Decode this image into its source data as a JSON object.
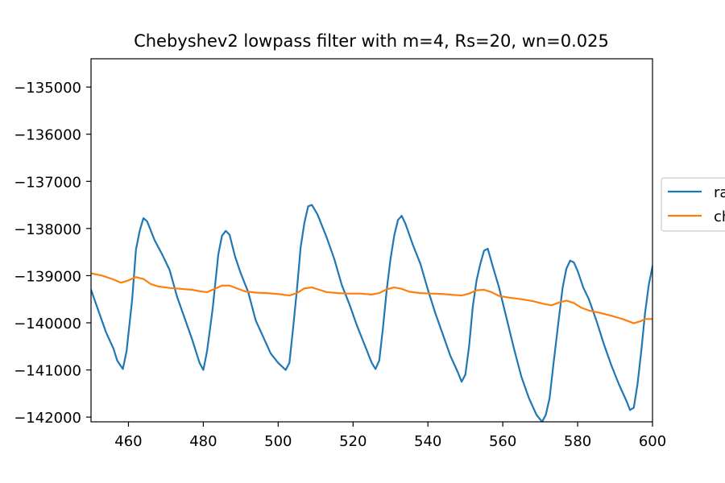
{
  "chart_data": {
    "type": "line",
    "title": "Chebyshev2 lowpass filter with m=4, Rs=20, wn=0.025",
    "xlabel": "",
    "ylabel": "",
    "xlim": [
      450,
      600
    ],
    "ylim": [
      -142100,
      -134400
    ],
    "x_ticks": [
      460,
      480,
      500,
      520,
      540,
      560,
      580,
      600
    ],
    "y_ticks": [
      -135000,
      -136000,
      -137000,
      -138000,
      -139000,
      -140000,
      -141000,
      -142000
    ],
    "x_tick_labels": [
      "460",
      "480",
      "500",
      "520",
      "540",
      "560",
      "580",
      "600"
    ],
    "y_tick_labels": [
      "−135000",
      "−136000",
      "−137000",
      "−138000",
      "−139000",
      "−140000",
      "−141000",
      "−142000"
    ],
    "grid": false,
    "legend_position": "right (partially cut off)",
    "legend_labels": [
      "ra",
      "ch"
    ],
    "series": [
      {
        "name": "ra",
        "color": "#1f77b4",
        "points": [
          [
            450,
            -139300
          ],
          [
            452,
            -139750
          ],
          [
            454,
            -140200
          ],
          [
            456,
            -140550
          ],
          [
            457,
            -140800
          ],
          [
            458.5,
            -140980
          ],
          [
            459.5,
            -140600
          ],
          [
            461,
            -139500
          ],
          [
            462,
            -138450
          ],
          [
            463,
            -138050
          ],
          [
            464,
            -137780
          ],
          [
            465,
            -137850
          ],
          [
            467,
            -138250
          ],
          [
            469,
            -138550
          ],
          [
            471,
            -138880
          ],
          [
            473,
            -139450
          ],
          [
            475,
            -139900
          ],
          [
            477,
            -140350
          ],
          [
            479,
            -140850
          ],
          [
            480,
            -141000
          ],
          [
            481,
            -140600
          ],
          [
            482.5,
            -139700
          ],
          [
            484,
            -138550
          ],
          [
            485,
            -138150
          ],
          [
            486,
            -138050
          ],
          [
            487,
            -138130
          ],
          [
            488.5,
            -138600
          ],
          [
            490,
            -138950
          ],
          [
            492,
            -139350
          ],
          [
            494,
            -139950
          ],
          [
            496,
            -140300
          ],
          [
            498,
            -140650
          ],
          [
            500,
            -140850
          ],
          [
            502,
            -141000
          ],
          [
            503,
            -140850
          ],
          [
            504,
            -140100
          ],
          [
            505,
            -139300
          ],
          [
            506,
            -138400
          ],
          [
            507,
            -137880
          ],
          [
            508,
            -137530
          ],
          [
            509,
            -137500
          ],
          [
            510.5,
            -137700
          ],
          [
            513,
            -138200
          ],
          [
            515,
            -138650
          ],
          [
            517,
            -139200
          ],
          [
            519,
            -139600
          ],
          [
            521,
            -140050
          ],
          [
            523,
            -140450
          ],
          [
            525,
            -140850
          ],
          [
            526,
            -140980
          ],
          [
            527,
            -140800
          ],
          [
            528,
            -140100
          ],
          [
            529,
            -139300
          ],
          [
            530,
            -138650
          ],
          [
            531,
            -138150
          ],
          [
            532,
            -137820
          ],
          [
            533,
            -137730
          ],
          [
            534,
            -137900
          ],
          [
            536,
            -138350
          ],
          [
            538,
            -138750
          ],
          [
            540,
            -139300
          ],
          [
            542,
            -139800
          ],
          [
            544,
            -140250
          ],
          [
            546,
            -140700
          ],
          [
            548,
            -141050
          ],
          [
            549,
            -141250
          ],
          [
            550,
            -141100
          ],
          [
            551,
            -140500
          ],
          [
            552,
            -139650
          ],
          [
            553,
            -139100
          ],
          [
            554,
            -138750
          ],
          [
            555,
            -138470
          ],
          [
            556,
            -138430
          ],
          [
            557.5,
            -138850
          ],
          [
            559,
            -139250
          ],
          [
            561,
            -139900
          ],
          [
            563,
            -140550
          ],
          [
            565,
            -141150
          ],
          [
            567,
            -141600
          ],
          [
            569,
            -141950
          ],
          [
            570.5,
            -142100
          ],
          [
            571.5,
            -141950
          ],
          [
            572.5,
            -141600
          ],
          [
            573.5,
            -140900
          ],
          [
            575,
            -139900
          ],
          [
            576,
            -139250
          ],
          [
            577,
            -138850
          ],
          [
            578,
            -138680
          ],
          [
            579,
            -138720
          ],
          [
            580,
            -138900
          ],
          [
            581.5,
            -139250
          ],
          [
            583,
            -139500
          ],
          [
            585,
            -139950
          ],
          [
            587,
            -140450
          ],
          [
            589,
            -140900
          ],
          [
            591,
            -141300
          ],
          [
            593,
            -141650
          ],
          [
            594,
            -141850
          ],
          [
            595,
            -141800
          ],
          [
            596,
            -141300
          ],
          [
            597,
            -140600
          ],
          [
            598,
            -139800
          ],
          [
            599,
            -139200
          ],
          [
            600,
            -138800
          ]
        ]
      },
      {
        "name": "ch",
        "color": "#ff7f0e",
        "points": [
          [
            450,
            -138950
          ],
          [
            453,
            -139000
          ],
          [
            456,
            -139080
          ],
          [
            458,
            -139150
          ],
          [
            460,
            -139100
          ],
          [
            462,
            -139030
          ],
          [
            464,
            -139070
          ],
          [
            466,
            -139180
          ],
          [
            468,
            -139230
          ],
          [
            471,
            -139260
          ],
          [
            474,
            -139280
          ],
          [
            477,
            -139300
          ],
          [
            479,
            -139330
          ],
          [
            481,
            -139350
          ],
          [
            483,
            -139280
          ],
          [
            485,
            -139210
          ],
          [
            487,
            -139210
          ],
          [
            489,
            -139270
          ],
          [
            491,
            -139330
          ],
          [
            494,
            -139360
          ],
          [
            497,
            -139370
          ],
          [
            500,
            -139390
          ],
          [
            503,
            -139420
          ],
          [
            505,
            -139370
          ],
          [
            507,
            -139270
          ],
          [
            509,
            -139250
          ],
          [
            511,
            -139300
          ],
          [
            513,
            -139350
          ],
          [
            516,
            -139370
          ],
          [
            519,
            -139380
          ],
          [
            522,
            -139380
          ],
          [
            525,
            -139400
          ],
          [
            527,
            -139370
          ],
          [
            529,
            -139290
          ],
          [
            531,
            -139250
          ],
          [
            533,
            -139280
          ],
          [
            535,
            -139340
          ],
          [
            538,
            -139370
          ],
          [
            541,
            -139380
          ],
          [
            544,
            -139390
          ],
          [
            547,
            -139410
          ],
          [
            549,
            -139420
          ],
          [
            551,
            -139380
          ],
          [
            553,
            -139310
          ],
          [
            555,
            -139300
          ],
          [
            557,
            -139350
          ],
          [
            559,
            -139430
          ],
          [
            562,
            -139470
          ],
          [
            565,
            -139500
          ],
          [
            568,
            -139540
          ],
          [
            571,
            -139600
          ],
          [
            573,
            -139630
          ],
          [
            575,
            -139570
          ],
          [
            577,
            -139530
          ],
          [
            579,
            -139580
          ],
          [
            581,
            -139680
          ],
          [
            583,
            -139740
          ],
          [
            586,
            -139790
          ],
          [
            589,
            -139850
          ],
          [
            592,
            -139920
          ],
          [
            595,
            -140010
          ],
          [
            597,
            -139960
          ],
          [
            598,
            -139920
          ],
          [
            600,
            -139920
          ]
        ]
      }
    ]
  }
}
